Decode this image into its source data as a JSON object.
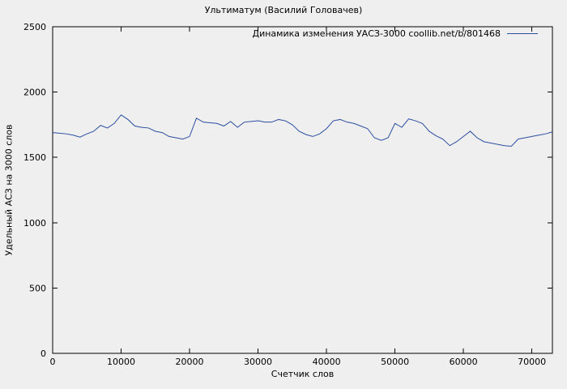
{
  "chart_data": {
    "type": "line",
    "title": "Ультиматум (Василий Головачев)",
    "legend": "Динамика изменения УАСЗ-3000 coollib.net/b/801468",
    "xlabel": "Счетчик слов",
    "ylabel": "Удельный АСЗ на 3000 слов",
    "xlim": [
      0,
      73000
    ],
    "ylim": [
      0,
      2500
    ],
    "xticks": [
      0,
      10000,
      20000,
      30000,
      40000,
      50000,
      60000,
      70000
    ],
    "yticks": [
      0,
      500,
      1000,
      1500,
      2000,
      2500
    ],
    "grid": false,
    "legend_position": "top-right",
    "line_color": "#2b4ea0",
    "background_color": "#efefef",
    "axis_color": "#000000",
    "x": [
      0,
      1000,
      2000,
      3000,
      4000,
      5000,
      6000,
      7000,
      8000,
      9000,
      10000,
      11000,
      12000,
      13000,
      14000,
      15000,
      16000,
      17000,
      18000,
      19000,
      20000,
      21000,
      22000,
      23000,
      24000,
      25000,
      26000,
      27000,
      28000,
      29000,
      30000,
      31000,
      32000,
      33000,
      34000,
      35000,
      36000,
      37000,
      38000,
      39000,
      40000,
      41000,
      42000,
      43000,
      44000,
      45000,
      46000,
      47000,
      48000,
      49000,
      50000,
      51000,
      52000,
      53000,
      54000,
      55000,
      56000,
      57000,
      58000,
      59000,
      60000,
      61000,
      62000,
      63000,
      64000,
      65000,
      66000,
      67000,
      68000,
      69000,
      70000,
      71000,
      72000,
      73000
    ],
    "values": [
      1690,
      1685,
      1680,
      1670,
      1655,
      1680,
      1700,
      1745,
      1725,
      1760,
      1825,
      1790,
      1740,
      1730,
      1725,
      1700,
      1690,
      1660,
      1650,
      1640,
      1660,
      1800,
      1770,
      1765,
      1760,
      1740,
      1775,
      1730,
      1770,
      1775,
      1780,
      1770,
      1770,
      1790,
      1780,
      1750,
      1700,
      1675,
      1660,
      1680,
      1720,
      1780,
      1790,
      1770,
      1760,
      1740,
      1720,
      1650,
      1630,
      1650,
      1760,
      1730,
      1795,
      1780,
      1760,
      1700,
      1665,
      1640,
      1590,
      1620,
      1660,
      1700,
      1650,
      1620,
      1610,
      1600,
      1590,
      1585,
      1640,
      1650,
      1660,
      1670,
      1680,
      1695
    ]
  }
}
